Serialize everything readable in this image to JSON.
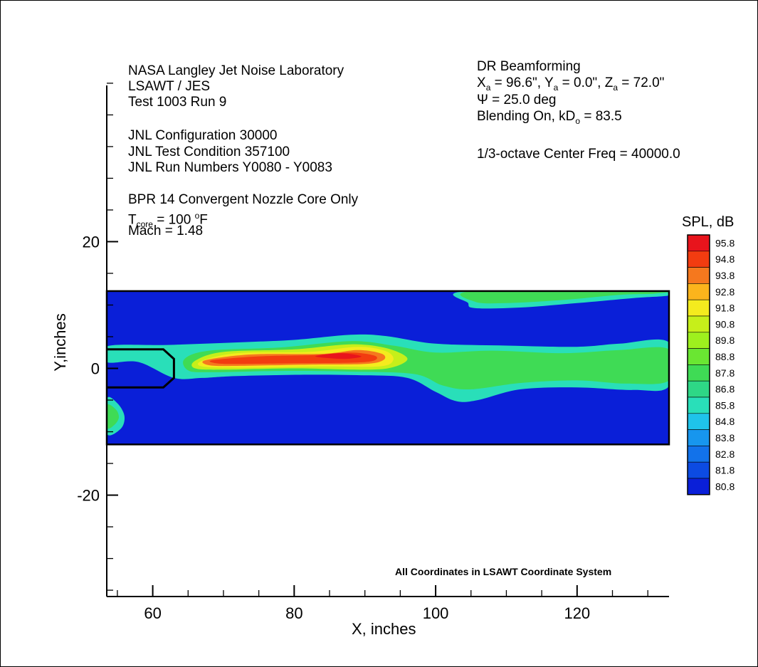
{
  "chart_data": {
    "type": "heatmap",
    "subtype": "filled-contour",
    "x_axis": {
      "label": "X, inches",
      "range": [
        53.5,
        133
      ],
      "major_ticks": [
        60,
        80,
        100,
        120
      ],
      "minor_step": 5
    },
    "y_axis": {
      "label": "Y,inches",
      "range": [
        -36,
        46
      ],
      "major_ticks": [
        -20,
        0,
        20
      ],
      "minor_step": 5
    },
    "plot_region": {
      "x": [
        53.5,
        133
      ],
      "y": [
        -12,
        12.2
      ]
    },
    "legend": {
      "title": "SPL, dB",
      "placement": "right",
      "levels": [
        "95.8",
        "94.8",
        "93.8",
        "92.8",
        "91.8",
        "90.8",
        "89.8",
        "88.8",
        "87.8",
        "86.8",
        "85.8",
        "84.8",
        "83.8",
        "82.8",
        "81.8",
        "80.8"
      ],
      "colors": [
        "#e8141c",
        "#f23c10",
        "#f5781e",
        "#fbb41c",
        "#f4eb1e",
        "#c6ef1a",
        "#9ef01e",
        "#6ae632",
        "#3fdb55",
        "#2ed786",
        "#29dfb9",
        "#1fc3ea",
        "#1796ee",
        "#1272ea",
        "#0c4be2",
        "#0a1fd8"
      ]
    },
    "contours": [
      {
        "name": "background",
        "level": 80.8,
        "color": "#0a1fd8",
        "points": [
          [
            53.5,
            -12
          ],
          [
            133,
            -12
          ],
          [
            133,
            12.2
          ],
          [
            53.5,
            12.2
          ]
        ]
      },
      {
        "name": "plume-outer",
        "level": 85.8,
        "color": "#29dfb9",
        "points": [
          [
            53.5,
            1
          ],
          [
            53.5,
            3.5
          ],
          [
            62,
            3.7
          ],
          [
            72,
            4.1
          ],
          [
            80,
            4.5
          ],
          [
            88,
            5.3
          ],
          [
            93,
            5.1
          ],
          [
            100,
            3.9
          ],
          [
            110,
            3.6
          ],
          [
            120,
            3.4
          ],
          [
            126,
            3.9
          ],
          [
            133,
            4.1
          ],
          [
            133,
            -2.8
          ],
          [
            128,
            -3.4
          ],
          [
            120,
            -3
          ],
          [
            112,
            -3.3
          ],
          [
            106,
            -5
          ],
          [
            103,
            -5.2
          ],
          [
            100,
            -3.7
          ],
          [
            96,
            -1.5
          ],
          [
            90,
            -1.1
          ],
          [
            82,
            -1
          ],
          [
            72,
            -1.2
          ],
          [
            67,
            -1.5
          ],
          [
            63,
            -1.5
          ],
          [
            58,
            1
          ]
        ]
      },
      {
        "name": "plume-green",
        "level": 87.8,
        "color": "#3fdb55",
        "points": [
          [
            64.5,
            1.5
          ],
          [
            68,
            2.8
          ],
          [
            78,
            3.3
          ],
          [
            88,
            4.3
          ],
          [
            94,
            3.6
          ],
          [
            100,
            2.5
          ],
          [
            108,
            2.8
          ],
          [
            118,
            2.4
          ],
          [
            126,
            2.9
          ],
          [
            133,
            3
          ],
          [
            133,
            -1.9
          ],
          [
            127,
            -2.4
          ],
          [
            120,
            -1.9
          ],
          [
            112,
            -2.3
          ],
          [
            105,
            -3.3
          ],
          [
            101,
            -2.7
          ],
          [
            97,
            -0.9
          ],
          [
            88,
            -0.5
          ],
          [
            78,
            -0.4
          ],
          [
            68,
            -0.6
          ],
          [
            65,
            -0.3
          ]
        ]
      },
      {
        "name": "plume-yellowgreen",
        "level": 90.8,
        "color": "#c6ef1a",
        "points": [
          [
            66,
            1.2
          ],
          [
            70,
            2.6
          ],
          [
            80,
            3.0
          ],
          [
            88,
            3.8
          ],
          [
            93,
            3.2
          ],
          [
            96,
            1.6
          ],
          [
            94,
            0.2
          ],
          [
            90,
            -0.2
          ],
          [
            80,
            0
          ],
          [
            70,
            -0.2
          ],
          [
            66,
            0
          ]
        ]
      },
      {
        "name": "plume-yellow",
        "level": 91.8,
        "color": "#f4eb1e",
        "points": [
          [
            67,
            1.2
          ],
          [
            72,
            2.4
          ],
          [
            82,
            2.6
          ],
          [
            89,
            3.4
          ],
          [
            93,
            2.7
          ],
          [
            94,
            1.3
          ],
          [
            92,
            0.3
          ],
          [
            84,
            0.3
          ],
          [
            72,
            0.1
          ],
          [
            67,
            0.3
          ]
        ]
      },
      {
        "name": "plume-orange",
        "level": 93.8,
        "color": "#f5781e",
        "points": [
          [
            67.5,
            1.3
          ],
          [
            74,
            2.2
          ],
          [
            84,
            2.3
          ],
          [
            89,
            2.9
          ],
          [
            92.4,
            2.3
          ],
          [
            92.6,
            1.3
          ],
          [
            90,
            0.7
          ],
          [
            82,
            0.6
          ],
          [
            72,
            0.4
          ],
          [
            68,
            0.5
          ]
        ]
      },
      {
        "name": "plume-red",
        "level": 94.8,
        "color": "#f23c10",
        "points": [
          [
            68.5,
            1.3
          ],
          [
            75,
            1.9
          ],
          [
            83,
            2.1
          ],
          [
            88,
            2.5
          ],
          [
            91.4,
            2
          ],
          [
            91.2,
            1.2
          ],
          [
            88,
            0.9
          ],
          [
            80,
            0.8
          ],
          [
            72,
            0.7
          ],
          [
            69,
            0.8
          ]
        ]
      },
      {
        "name": "hot-spot",
        "level": 95.8,
        "color": "#e8141c",
        "points": [
          [
            83,
            1.9
          ],
          [
            86.5,
            2.4
          ],
          [
            89.5,
            1.9
          ],
          [
            87,
            1.5
          ]
        ]
      },
      {
        "name": "upper-right-outer",
        "level": 85.8,
        "color": "#29dfb9",
        "points": [
          [
            104.6,
            12.2
          ],
          [
            104.6,
            10.3
          ],
          [
            105.6,
            9.5
          ],
          [
            112,
            9.6
          ],
          [
            120,
            10.3
          ],
          [
            128,
            11.1
          ],
          [
            133,
            11.5
          ],
          [
            133,
            12.2
          ]
        ]
      },
      {
        "name": "upper-right-green",
        "level": 87.8,
        "color": "#3fdb55",
        "points": [
          [
            105.5,
            12.2
          ],
          [
            105.6,
            10.5
          ],
          [
            110,
            10.3
          ],
          [
            118,
            10.8
          ],
          [
            126,
            11.6
          ],
          [
            131,
            11.8
          ],
          [
            131,
            12.2
          ]
        ]
      },
      {
        "name": "left-lower-blob",
        "level": 85.8,
        "color": "#29dfb9",
        "points": [
          [
            53.5,
            -4.8
          ],
          [
            55,
            -5.5
          ],
          [
            56,
            -7.5
          ],
          [
            55.5,
            -9.5
          ],
          [
            53.5,
            -10.3
          ]
        ]
      },
      {
        "name": "left-lower-core",
        "level": 87.8,
        "color": "#3fdb55",
        "points": [
          [
            53.5,
            -5.8
          ],
          [
            54.8,
            -6.5
          ],
          [
            55.2,
            -7.8
          ],
          [
            54.5,
            -9
          ],
          [
            53.5,
            -9.3
          ]
        ]
      }
    ],
    "nozzle_outline": [
      [
        53.5,
        3
      ],
      [
        61.5,
        3
      ],
      [
        63,
        1.5
      ],
      [
        63,
        -1.5
      ],
      [
        61.5,
        -3
      ],
      [
        53.5,
        -3
      ]
    ],
    "annotations": {
      "left_block": {
        "line1": "NASA Langley Jet Noise Laboratory",
        "line2": "LSAWT / JES",
        "line3": "Test 1003 Run 9",
        "line4": "JNL Configuration 30000",
        "line5": "JNL Test Condition 357100",
        "line6": "JNL Run Numbers Y0080 - Y0083",
        "line7": "BPR 14 Convergent Nozzle Core Only",
        "tcore_T": "T",
        "tcore_sub": "core",
        "tcore_mid": " = 100 ",
        "tcore_sup": "o",
        "tcore_unit": "F",
        "mach": "Mach = 1.48"
      },
      "right_block": {
        "line1": "DR Beamforming",
        "xa_X": "X",
        "xa_sub": "a",
        "xa_val": " = 96.6\", ",
        "ya_Y": "Y",
        "ya_sub": "a",
        "ya_val": " = 0.0\", ",
        "za_Z": "Z",
        "za_sub": "a",
        "za_val": " = 72.0\"",
        "psi": "Ψ = 25.0 deg",
        "blend_text": "Blending On, kD",
        "blend_sub": "o",
        "blend_val": " = 83.5",
        "freq": "1/3-octave Center Freq =  40000.0"
      },
      "coord_note": "All Coordinates in LSAWT Coordinate System"
    }
  }
}
